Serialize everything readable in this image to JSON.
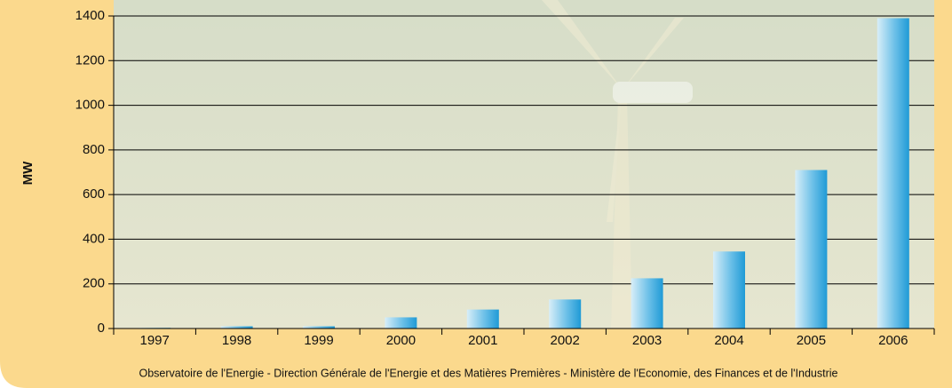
{
  "chart_data": {
    "type": "bar",
    "ylabel": "MW",
    "categories": [
      "1997",
      "1998",
      "1999",
      "2000",
      "2001",
      "2002",
      "2003",
      "2004",
      "2005",
      "2006"
    ],
    "values": [
      3,
      10,
      10,
      50,
      85,
      130,
      225,
      345,
      710,
      1390
    ],
    "color": "#1f9ad6",
    "ylim": [
      0,
      1400
    ],
    "yticks": [
      0,
      200,
      400,
      600,
      800,
      1000,
      1200,
      1400
    ],
    "grid": true,
    "source": "Observatoire de l'Energie - Direction Générale de l'Energie et des Matières Premières - Ministère de l'Economie, des Finances et de l'Industrie"
  }
}
